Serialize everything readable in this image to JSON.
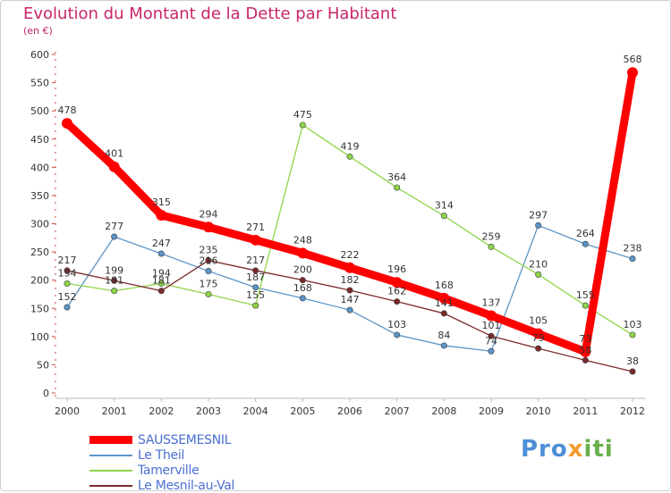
{
  "title": "Evolution du Montant de la Dette par Habitant",
  "subtitle": "(en €)",
  "logo": {
    "text": "Proxiti",
    "colors": [
      "#4e8fd6",
      "#f39a2c",
      "#6ab04c"
    ]
  },
  "chart_data": {
    "type": "line",
    "title": "Evolution du Montant de la Dette par Habitant",
    "subtitle": "(en €)",
    "xlabel": "",
    "ylabel": "",
    "x": [
      "2000",
      "2001",
      "2002",
      "2003",
      "2004",
      "2005",
      "2006",
      "2007",
      "2008",
      "2009",
      "2010",
      "2011",
      "2012"
    ],
    "ylim": [
      0,
      600
    ],
    "yticks": [
      0,
      50,
      100,
      150,
      200,
      250,
      300,
      350,
      400,
      450,
      500,
      550,
      600
    ],
    "grid": false,
    "legend_position": "bottom-left",
    "series": [
      {
        "name": "SAUSSEMESNIL",
        "color": "#ff0000",
        "emphasis": true,
        "values": [
          478,
          401,
          315,
          294,
          271,
          248,
          222,
          196,
          168,
          137,
          105,
          73,
          568
        ]
      },
      {
        "name": "Le Theil",
        "color": "#5b95c8",
        "values": [
          152,
          277,
          247,
          216,
          187,
          168,
          147,
          103,
          84,
          74,
          297,
          264,
          238
        ]
      },
      {
        "name": "Tamerville",
        "color": "#8fd449",
        "values": [
          194,
          181,
          194,
          175,
          155,
          475,
          419,
          364,
          314,
          259,
          210,
          155,
          103
        ]
      },
      {
        "name": "Le Mesnil-au-Val",
        "color": "#7a2a2a",
        "values": [
          217,
          199,
          181,
          235,
          217,
          200,
          182,
          162,
          141,
          101,
          79,
          58,
          38
        ]
      }
    ]
  }
}
